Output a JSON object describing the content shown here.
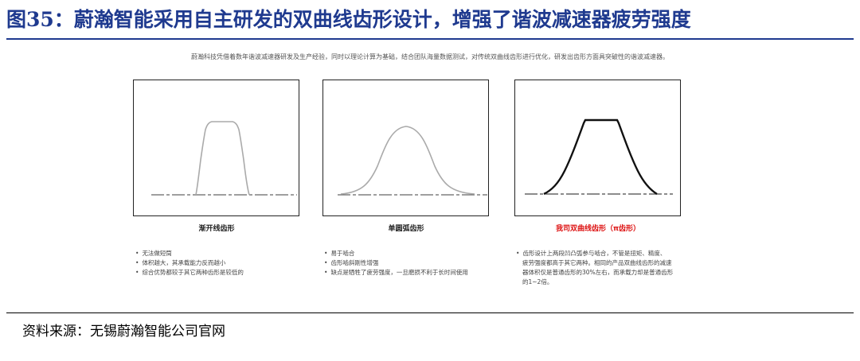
{
  "figure": {
    "title": "图35：蔚瀚智能采用自主研发的双曲线齿形设计，增强了谐波减速器疲劳强度",
    "intro": "蔚瀚科技凭借着数年谐波减速器研发及生产经验，同时以理论计算为基础，结合团队海量数据测试，对传统双曲线齿形进行优化，研发出齿形方面具突破性的谐波减速器。",
    "source": "资料来源：无锡蔚瀚智能公司官网"
  },
  "panels": [
    {
      "caption": "渐开线齿形",
      "bullets": [
        "无法做短筒",
        "体积越大，其承载能力反而越小",
        "综合优势都较于其它两种齿形是较低的"
      ]
    },
    {
      "caption": "单圆弧齿形",
      "bullets": [
        "易于啮合",
        "齿形啮斜刚性增强",
        "缺点是牺牲了疲劳强度，一旦磨损不利于长时间使用"
      ]
    },
    {
      "caption": "我司双曲线齿形（π齿形）",
      "bullets": [
        "齿形设计上两段凹凸弧参与啮合，不管是扭矩、精度、",
        "疲劳强度都高于其它两种。相同的产品双曲线齿形的减速",
        "器体积仅是普通齿形的30%左右，而承载力却是普通齿形",
        "的1~2倍。"
      ]
    }
  ],
  "colors": {
    "title": "#1f3a8f",
    "highlight": "#d11111",
    "curve_gray": "#aaaaaa",
    "curve_black": "#111111"
  }
}
